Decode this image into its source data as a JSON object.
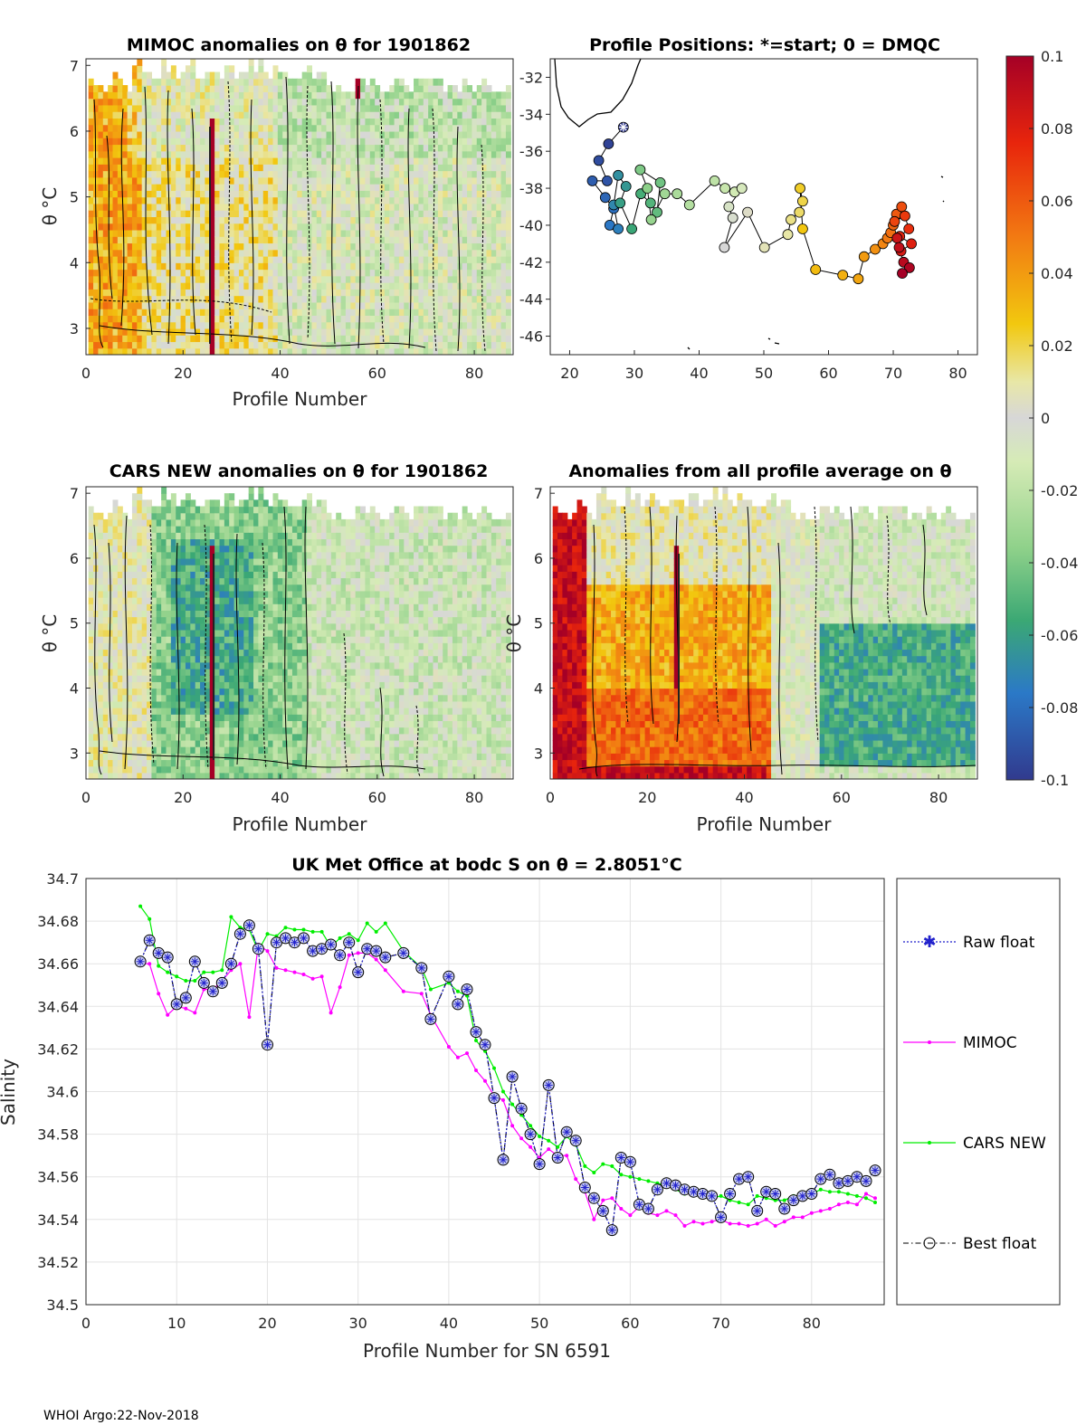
{
  "footer": "WHOI Argo:22-Nov-2018",
  "colorbar": {
    "ticks": [
      "0.1",
      "0.08",
      "0.06",
      "0.04",
      "0.02",
      "0",
      "-0.02",
      "-0.04",
      "-0.06",
      "-0.08",
      "-0.1"
    ],
    "range": [
      -0.1,
      0.1
    ]
  },
  "chart_data": [
    {
      "type": "heatmap",
      "title": "MIMOC anomalies on θ  for 1901862",
      "xlabel": "Profile Number",
      "ylabel": "θ °C",
      "xticks": [
        "0",
        "20",
        "40",
        "60",
        "80"
      ],
      "yticks": [
        "3",
        "4",
        "5",
        "6",
        "7"
      ],
      "xlim": [
        0,
        88
      ],
      "ylim": [
        2.6,
        7.1
      ],
      "anomaly_pattern": "mostly positive (yellow-orange) for profiles 1-40, near zero to slightly negative (green-grey) above 40"
    },
    {
      "type": "scatter",
      "title": "Profile Positions: *=start; 0 = DMQC",
      "xticks": [
        "20",
        "30",
        "40",
        "50",
        "60",
        "70",
        "80"
      ],
      "yticks": [
        "-32",
        "-34",
        "-36",
        "-38",
        "-40",
        "-42",
        "-44",
        "-46"
      ],
      "xlim": [
        17,
        83
      ],
      "ylim": [
        -47,
        -31
      ],
      "track": [
        [
          28.3,
          -34.7
        ],
        [
          26.0,
          -35.6
        ],
        [
          24.5,
          -36.5
        ],
        [
          25.8,
          -37.6
        ],
        [
          23.5,
          -37.6
        ],
        [
          25.5,
          -38.5
        ],
        [
          26.8,
          -39.1
        ],
        [
          26.2,
          -40.0
        ],
        [
          27.5,
          -40.2
        ],
        [
          26.8,
          -38.9
        ],
        [
          27.5,
          -37.3
        ],
        [
          28.7,
          -37.9
        ],
        [
          27.8,
          -38.8
        ],
        [
          29.6,
          -40.2
        ],
        [
          31.0,
          -38.3
        ],
        [
          32.5,
          -38.8
        ],
        [
          33.5,
          -39.3
        ],
        [
          34.0,
          -37.7
        ],
        [
          30.9,
          -37.0
        ],
        [
          32.0,
          -38.0
        ],
        [
          32.6,
          -39.7
        ],
        [
          34.7,
          -38.3
        ],
        [
          36.6,
          -38.3
        ],
        [
          38.5,
          -38.9
        ],
        [
          42.4,
          -37.6
        ],
        [
          44.0,
          -38.0
        ],
        [
          45.5,
          -38.2
        ],
        [
          46.6,
          -38.0
        ],
        [
          44.6,
          -39.0
        ],
        [
          45.2,
          -39.6
        ],
        [
          43.9,
          -41.2
        ],
        [
          47.5,
          -39.3
        ],
        [
          50.1,
          -41.2
        ],
        [
          53.7,
          -40.5
        ],
        [
          54.2,
          -39.7
        ],
        [
          55.5,
          -39.3
        ],
        [
          56.0,
          -38.7
        ],
        [
          55.6,
          -38.0
        ],
        [
          56.0,
          -40.2
        ],
        [
          58.0,
          -42.4
        ],
        [
          62.2,
          -42.7
        ],
        [
          64.6,
          -42.9
        ],
        [
          65.5,
          -41.7
        ],
        [
          67.2,
          -41.3
        ],
        [
          68.4,
          -41.0
        ],
        [
          69.1,
          -40.7
        ],
        [
          69.6,
          -40.4
        ],
        [
          70.0,
          -40.0
        ],
        [
          70.5,
          -39.4
        ],
        [
          71.3,
          -39.0
        ],
        [
          70.2,
          -39.8
        ],
        [
          71.8,
          -39.5
        ],
        [
          72.4,
          -40.2
        ],
        [
          71.0,
          -40.6
        ],
        [
          72.8,
          -41.0
        ],
        [
          71.2,
          -41.4
        ],
        [
          70.6,
          -40.7
        ],
        [
          70.9,
          -41.2
        ],
        [
          71.6,
          -42.0
        ],
        [
          72.5,
          -42.3
        ],
        [
          71.4,
          -42.6
        ]
      ]
    },
    {
      "type": "heatmap",
      "title": "CARS NEW anomalies on θ for 1901862",
      "xlabel": "Profile Number",
      "ylabel": "θ °C",
      "xticks": [
        "0",
        "20",
        "40",
        "60",
        "80"
      ],
      "yticks": [
        "3",
        "4",
        "5",
        "6",
        "7"
      ],
      "xlim": [
        0,
        88
      ],
      "ylim": [
        2.6,
        7.1
      ],
      "anomaly_pattern": "negative (blue-green) for profiles 15-45, weakly negative afterwards"
    },
    {
      "type": "heatmap",
      "title": "Anomalies from all profile average on θ",
      "xlabel": "Profile Number",
      "ylabel": "θ °C",
      "xticks": [
        "0",
        "20",
        "40",
        "60",
        "80"
      ],
      "yticks": [
        "3",
        "4",
        "5",
        "6",
        "7"
      ],
      "xlim": [
        0,
        88
      ],
      "ylim": [
        2.6,
        7.1
      ],
      "anomaly_pattern": "strongly positive (red-orange) for profiles 1-45, negative (blue) below theta 5 for profiles 55-87"
    },
    {
      "type": "line",
      "title": "UK Met Office at bodc S on θ = 2.8051",
      "title_unit": "°C",
      "xlabel": "Profile Number for SN 6591",
      "ylabel": "Salinity",
      "xlim": [
        0,
        88
      ],
      "ylim": [
        34.5,
        34.7
      ],
      "xticks": [
        "0",
        "10",
        "20",
        "30",
        "40",
        "50",
        "60",
        "70",
        "80"
      ],
      "yticks": [
        "34.5",
        "34.52",
        "34.54",
        "34.56",
        "34.58",
        "34.6",
        "34.62",
        "34.64",
        "34.66",
        "34.68",
        "34.7"
      ],
      "x": [
        6,
        7,
        8,
        9,
        10,
        11,
        12,
        13,
        14,
        15,
        16,
        17,
        18,
        19,
        20,
        21,
        22,
        23,
        24,
        25,
        26,
        27,
        28,
        29,
        30,
        31,
        32,
        33,
        35,
        37,
        38,
        40,
        41,
        42,
        43,
        44,
        45,
        46,
        47,
        48,
        49,
        50,
        51,
        52,
        53,
        54,
        55,
        56,
        57,
        58,
        59,
        60,
        61,
        62,
        63,
        64,
        65,
        66,
        67,
        68,
        69,
        70,
        71,
        72,
        73,
        74,
        75,
        76,
        77,
        78,
        79,
        80,
        81,
        82,
        83,
        84,
        85,
        86,
        87
      ],
      "series": [
        {
          "name": "Raw float",
          "values": [
            34.661,
            34.671,
            34.665,
            34.663,
            34.641,
            34.644,
            34.661,
            34.651,
            34.647,
            34.651,
            34.66,
            34.674,
            34.678,
            34.667,
            34.622,
            34.67,
            34.672,
            34.67,
            34.672,
            34.666,
            34.667,
            34.669,
            34.664,
            34.67,
            34.656,
            34.667,
            34.666,
            34.663,
            34.665,
            34.658,
            34.634,
            34.654,
            34.641,
            34.648,
            34.628,
            34.622,
            34.597,
            34.568,
            34.607,
            34.592,
            34.58,
            34.566,
            34.603,
            34.569,
            34.581,
            34.577,
            34.555,
            34.55,
            34.544,
            34.535,
            34.569,
            34.567,
            34.547,
            34.545,
            34.554,
            34.557,
            34.556,
            34.554,
            34.553,
            34.552,
            34.551,
            34.541,
            34.552,
            34.559,
            34.56,
            34.544,
            34.553,
            34.552,
            34.545,
            34.549,
            34.551,
            34.552,
            34.559,
            34.561,
            34.557,
            34.558,
            34.56,
            34.558,
            34.563
          ]
        },
        {
          "name": "MIMOC",
          "values": [
            34.66,
            34.66,
            34.646,
            34.636,
            34.64,
            34.639,
            34.637,
            34.648,
            34.648,
            34.652,
            34.657,
            34.66,
            34.635,
            34.669,
            34.666,
            34.658,
            34.657,
            34.656,
            34.655,
            34.653,
            34.654,
            34.637,
            34.649,
            34.664,
            34.665,
            34.665,
            34.662,
            34.657,
            34.647,
            34.646,
            34.636,
            34.621,
            34.616,
            34.618,
            34.61,
            34.605,
            34.598,
            34.596,
            34.584,
            34.578,
            34.574,
            34.569,
            34.573,
            34.57,
            34.57,
            34.559,
            34.553,
            34.54,
            34.549,
            34.55,
            34.545,
            34.542,
            34.546,
            34.543,
            34.542,
            34.544,
            34.542,
            34.537,
            34.539,
            34.538,
            34.539,
            34.54,
            34.538,
            34.538,
            34.537,
            34.538,
            34.54,
            34.537,
            34.539,
            34.541,
            34.541,
            34.543,
            34.544,
            34.545,
            34.547,
            34.548,
            34.547,
            34.552,
            34.55
          ]
        },
        {
          "name": "CARS NEW",
          "values": [
            34.687,
            34.681,
            34.659,
            34.656,
            34.654,
            34.652,
            34.652,
            34.656,
            34.656,
            34.657,
            34.682,
            34.677,
            34.676,
            34.666,
            34.674,
            34.673,
            34.677,
            34.676,
            34.676,
            34.675,
            34.675,
            34.668,
            34.672,
            34.674,
            34.671,
            34.679,
            34.675,
            34.679,
            34.666,
            34.658,
            34.648,
            34.651,
            34.647,
            34.645,
            34.624,
            34.619,
            34.611,
            34.6,
            34.594,
            34.589,
            34.584,
            34.579,
            34.577,
            34.574,
            34.579,
            34.575,
            34.565,
            34.562,
            34.566,
            34.565,
            34.561,
            34.56,
            34.559,
            34.558,
            34.557,
            34.556,
            34.554,
            34.552,
            34.553,
            34.551,
            34.55,
            34.551,
            34.549,
            34.548,
            34.547,
            34.551,
            34.55,
            34.549,
            34.549,
            34.551,
            34.551,
            34.552,
            34.554,
            34.553,
            34.553,
            34.552,
            34.551,
            34.55,
            34.548
          ]
        }
      ],
      "best_float": "same as Raw float",
      "legend": [
        "Raw float",
        "MIMOC",
        "CARS NEW",
        "Best float"
      ],
      "grid": true
    }
  ]
}
